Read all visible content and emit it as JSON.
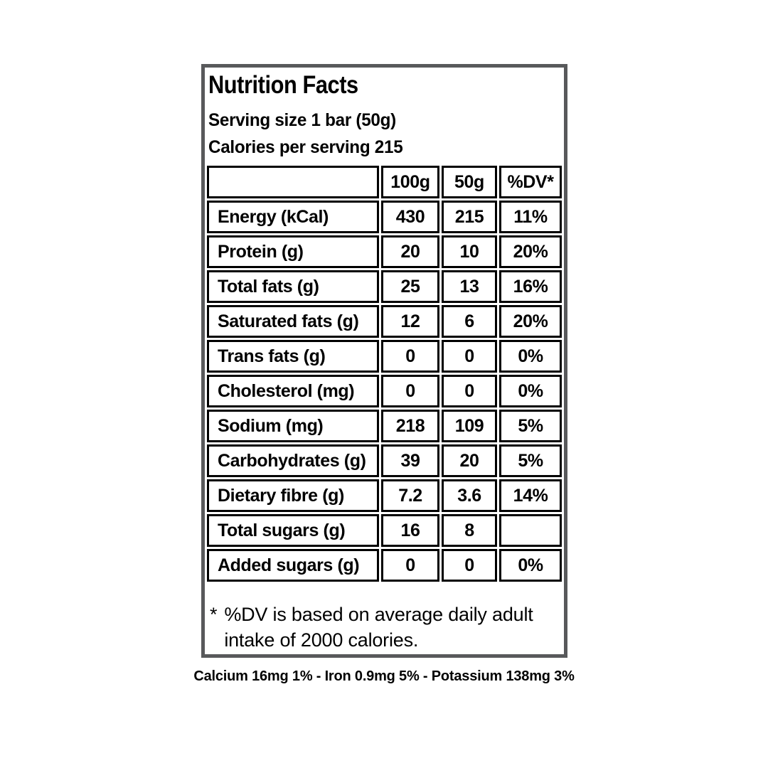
{
  "label": {
    "title": "Nutrition Facts",
    "serving_size": "Serving size 1 bar (50g)",
    "calories_line": "Calories per serving 215",
    "footnote_marker": "*",
    "footnote_line1": "%DV is based on average daily adult",
    "footnote_line2": "intake of 2000 calories."
  },
  "table": {
    "headers": [
      "",
      "100g",
      "50g",
      "%DV*"
    ],
    "rows": [
      {
        "label": "Energy (kCal)",
        "per100g": "430",
        "per50g": "215",
        "dv": "11%"
      },
      {
        "label": "Protein (g)",
        "per100g": "20",
        "per50g": "10",
        "dv": "20%"
      },
      {
        "label": "Total fats (g)",
        "per100g": "25",
        "per50g": "13",
        "dv": "16%"
      },
      {
        "label": "Saturated fats (g)",
        "per100g": "12",
        "per50g": "6",
        "dv": "20%"
      },
      {
        "label": "Trans fats (g)",
        "per100g": "0",
        "per50g": "0",
        "dv": "0%"
      },
      {
        "label": "Cholesterol (mg)",
        "per100g": "0",
        "per50g": "0",
        "dv": "0%"
      },
      {
        "label": "Sodium (mg)",
        "per100g": "218",
        "per50g": "109",
        "dv": "5%"
      },
      {
        "label": "Carbohydrates (g)",
        "per100g": "39",
        "per50g": "20",
        "dv": "5%"
      },
      {
        "label": "Dietary fibre (g)",
        "per100g": "7.2",
        "per50g": "3.6",
        "dv": "14%"
      },
      {
        "label": "Total sugars (g)",
        "per100g": "16",
        "per50g": "8",
        "dv": ""
      },
      {
        "label": "Added sugars (g)",
        "per100g": "0",
        "per50g": "0",
        "dv": "0%"
      }
    ]
  },
  "minerals_line": "Calcium 16mg 1% - Iron 0.9mg 5% - Potassium 138mg 3%",
  "colors": {
    "box_border_gray": "#58595b",
    "table_border_black": "#000000",
    "text": "#000000",
    "background": "#ffffff"
  }
}
